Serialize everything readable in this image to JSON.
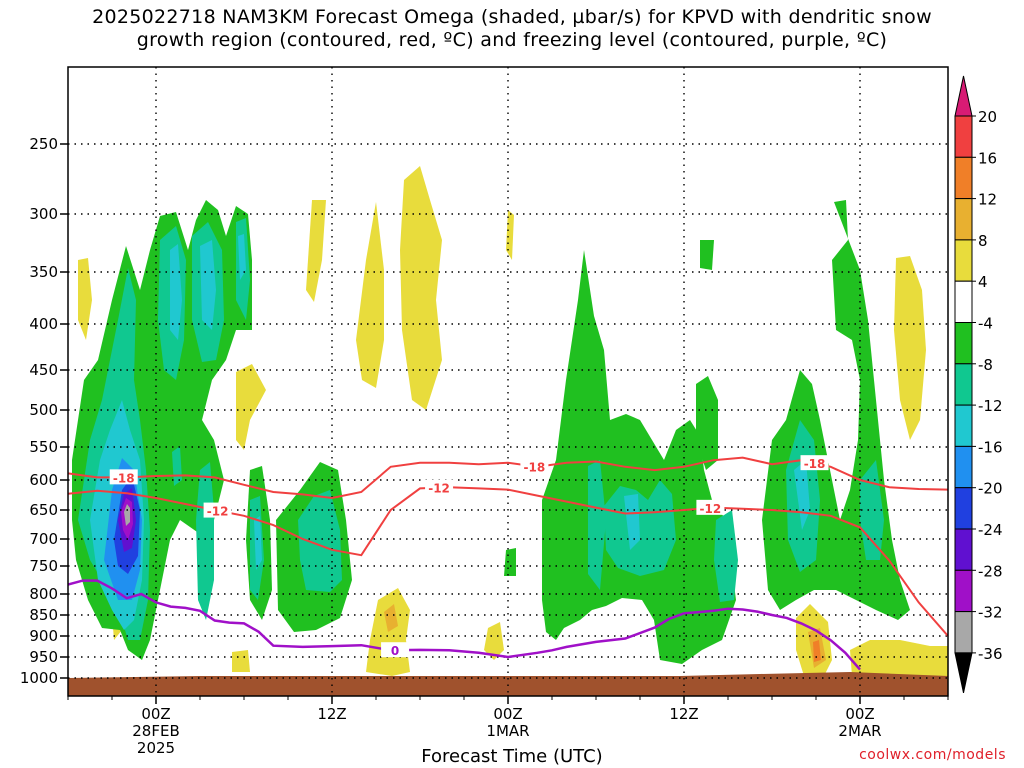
{
  "title": {
    "line1": "2025022718 NAM3KM Forecast Omega (shaded, µbar/s) for KPVD with dendritic snow",
    "line2": "growth region (contoured, red, ºC) and freezing level (contoured, purple, ºC)"
  },
  "xaxis_title": "Forecast Time (UTC)",
  "credit": "coolwx.com/models",
  "chart_data": {
    "type": "heatmap",
    "title": "2025022718 NAM3KM Forecast Omega (shaded, µbar/s) for KPVD with dendritic snow growth region (contoured, red, ºC) and freezing level (contoured, purple, ºC)",
    "xlabel": "Forecast Time (UTC)",
    "ylabel": "",
    "x_range_hours": [
      18,
      78
    ],
    "y_pressure_levels": [
      1000,
      950,
      900,
      850,
      800,
      750,
      700,
      650,
      600,
      550,
      500,
      450,
      400,
      350,
      300,
      250
    ],
    "x_ticks": [
      {
        "hour": 24,
        "lines": [
          "00Z",
          "28FEB",
          "2025"
        ]
      },
      {
        "hour": 36,
        "lines": [
          "12Z"
        ]
      },
      {
        "hour": 48,
        "lines": [
          "00Z",
          "1MAR"
        ]
      },
      {
        "hour": 60,
        "lines": [
          "12Z"
        ]
      },
      {
        "hour": 72,
        "lines": [
          "00Z",
          "2MAR"
        ]
      }
    ],
    "colorbar": {
      "labels": [
        "20",
        "16",
        "12",
        "8",
        "4",
        "-4",
        "-8",
        "-12",
        "-16",
        "-20",
        "-24",
        "-28",
        "-32",
        "-36"
      ],
      "colors": [
        "#d81b74",
        "#f04040",
        "#f07f28",
        "#e8b030",
        "#e8dc3c",
        "#ffffff",
        "#20c020",
        "#10c890",
        "#20c8d0",
        "#2090f0",
        "#2040e0",
        "#6010d0",
        "#a010c8",
        "#a8a8a8",
        "#000000"
      ]
    },
    "contours": [
      {
        "color": "#f04040",
        "value": "-18",
        "label_hours": [
          21.8,
          49.8,
          68.9
        ]
      },
      {
        "color": "#f04040",
        "value": "-12",
        "label_hours": [
          28.2,
          43.3,
          61.8
        ]
      },
      {
        "color": "#a010c8",
        "value": "0",
        "label_hours": [
          40.3
        ]
      }
    ],
    "red_minus18": [
      [
        18,
        590
      ],
      [
        20,
        596
      ],
      [
        22,
        596
      ],
      [
        24,
        594
      ],
      [
        26,
        593
      ],
      [
        28,
        596
      ],
      [
        30,
        608
      ],
      [
        32,
        620
      ],
      [
        34,
        624
      ],
      [
        36,
        630
      ],
      [
        38,
        620
      ],
      [
        40,
        580
      ],
      [
        42,
        574
      ],
      [
        44,
        574
      ],
      [
        46,
        576
      ],
      [
        48,
        574
      ],
      [
        50,
        580
      ],
      [
        52,
        574
      ],
      [
        54,
        572
      ],
      [
        56,
        580
      ],
      [
        58,
        585
      ],
      [
        60,
        580
      ],
      [
        62,
        570
      ],
      [
        64,
        566
      ],
      [
        66,
        576
      ],
      [
        68,
        570
      ],
      [
        70,
        580
      ],
      [
        72,
        600
      ],
      [
        74,
        612
      ],
      [
        76,
        615
      ],
      [
        78,
        616
      ]
    ],
    "red_minus12": [
      [
        18,
        623
      ],
      [
        20,
        618
      ],
      [
        22,
        622
      ],
      [
        24,
        630
      ],
      [
        26,
        640
      ],
      [
        28,
        650
      ],
      [
        30,
        660
      ],
      [
        32,
        676
      ],
      [
        34,
        700
      ],
      [
        36,
        720
      ],
      [
        38,
        730
      ],
      [
        40,
        650
      ],
      [
        42,
        614
      ],
      [
        44,
        612
      ],
      [
        46,
        614
      ],
      [
        48,
        616
      ],
      [
        50,
        626
      ],
      [
        52,
        636
      ],
      [
        54,
        646
      ],
      [
        56,
        656
      ],
      [
        58,
        654
      ],
      [
        60,
        650
      ],
      [
        62,
        646
      ],
      [
        64,
        648
      ],
      [
        66,
        650
      ],
      [
        68,
        654
      ],
      [
        70,
        660
      ],
      [
        72,
        680
      ],
      [
        74,
        740
      ],
      [
        76,
        820
      ],
      [
        78,
        900
      ]
    ],
    "purple_zero": [
      [
        18,
        783
      ],
      [
        19,
        776
      ],
      [
        20,
        776
      ],
      [
        21,
        790
      ],
      [
        22,
        810
      ],
      [
        23,
        800
      ],
      [
        24,
        820
      ],
      [
        25,
        830
      ],
      [
        26,
        833
      ],
      [
        27,
        840
      ],
      [
        28,
        863
      ],
      [
        29,
        868
      ],
      [
        30,
        870
      ],
      [
        31,
        890
      ],
      [
        32,
        923
      ],
      [
        34,
        926
      ],
      [
        36,
        924
      ],
      [
        38,
        922
      ],
      [
        40,
        934
      ],
      [
        42,
        933
      ],
      [
        44,
        934
      ],
      [
        46,
        940
      ],
      [
        48,
        950
      ],
      [
        50,
        940
      ],
      [
        51,
        934
      ],
      [
        52,
        926
      ],
      [
        54,
        914
      ],
      [
        56,
        906
      ],
      [
        58,
        880
      ],
      [
        59,
        859
      ],
      [
        60,
        846
      ],
      [
        61,
        843
      ],
      [
        62,
        840
      ],
      [
        63,
        835
      ],
      [
        64,
        837
      ],
      [
        65,
        842
      ],
      [
        66,
        850
      ],
      [
        67,
        857
      ],
      [
        68,
        870
      ],
      [
        69,
        887
      ],
      [
        70,
        910
      ],
      [
        71,
        940
      ],
      [
        72,
        980
      ]
    ]
  }
}
